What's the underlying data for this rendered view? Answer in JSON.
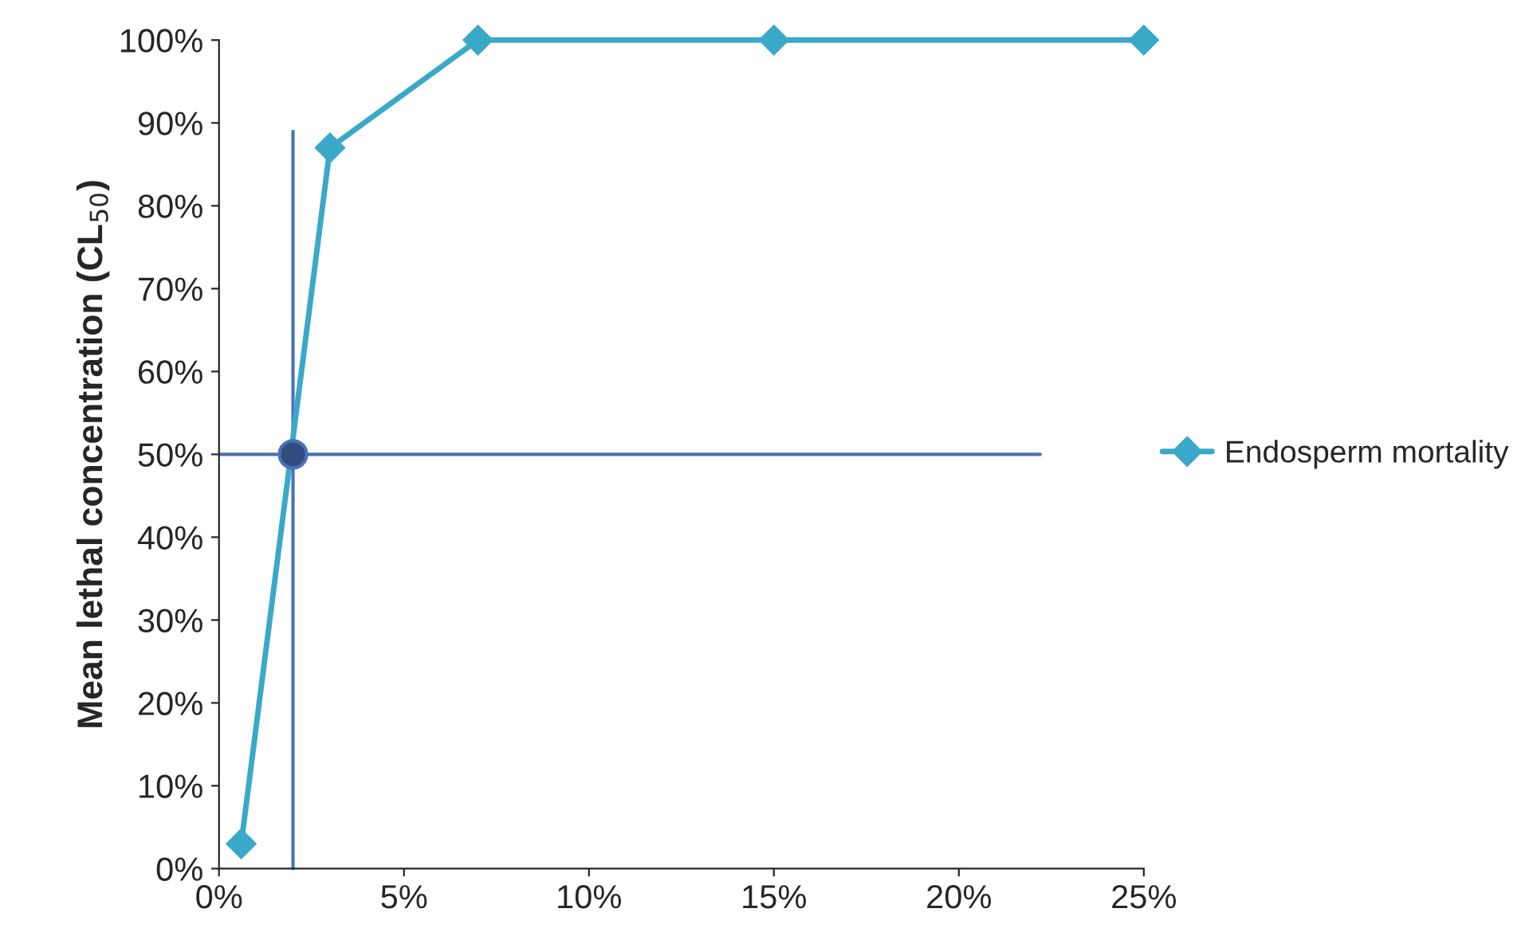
{
  "chart_data": {
    "type": "line",
    "ylabel": "Mean lethal concentration (CL$_{50}$)",
    "xlim": [
      0,
      25
    ],
    "ylim": [
      0,
      100
    ],
    "xticks": [
      {
        "value": 0,
        "label": "0%"
      },
      {
        "value": 5,
        "label": "5%"
      },
      {
        "value": 10,
        "label": "10%"
      },
      {
        "value": 15,
        "label": "15%"
      },
      {
        "value": 20,
        "label": "20%"
      },
      {
        "value": 25,
        "label": "25%"
      }
    ],
    "yticks": [
      {
        "value": 0,
        "label": "0%"
      },
      {
        "value": 10,
        "label": "10%"
      },
      {
        "value": 20,
        "label": "20%"
      },
      {
        "value": 30,
        "label": "30%"
      },
      {
        "value": 40,
        "label": "40%"
      },
      {
        "value": 50,
        "label": "50%"
      },
      {
        "value": 60,
        "label": "60%"
      },
      {
        "value": 70,
        "label": "70%"
      },
      {
        "value": 80,
        "label": "80%"
      },
      {
        "value": 90,
        "label": "90%"
      },
      {
        "value": 100,
        "label": "100%"
      }
    ],
    "grid": false,
    "legend": "right",
    "series": [
      {
        "type": "line",
        "color": "#4a72b8",
        "marker": "none",
        "x": [
          2,
          2
        ],
        "values": [
          0,
          89
        ]
      },
      {
        "type": "line",
        "color": "#4a72b8",
        "marker": "none",
        "x": [
          0,
          22.2
        ],
        "values": [
          50,
          50
        ]
      },
      {
        "name": "Endosperm mortality",
        "color": "#3aa9c9",
        "marker": "diamond",
        "x": [
          0.6,
          3,
          7,
          15,
          25
        ],
        "values": [
          3,
          87,
          100,
          100,
          100
        ]
      },
      {
        "type": "scatter",
        "color": "#2f4d7e",
        "marker": "circle",
        "x": [
          2
        ],
        "values": [
          50
        ]
      }
    ]
  }
}
